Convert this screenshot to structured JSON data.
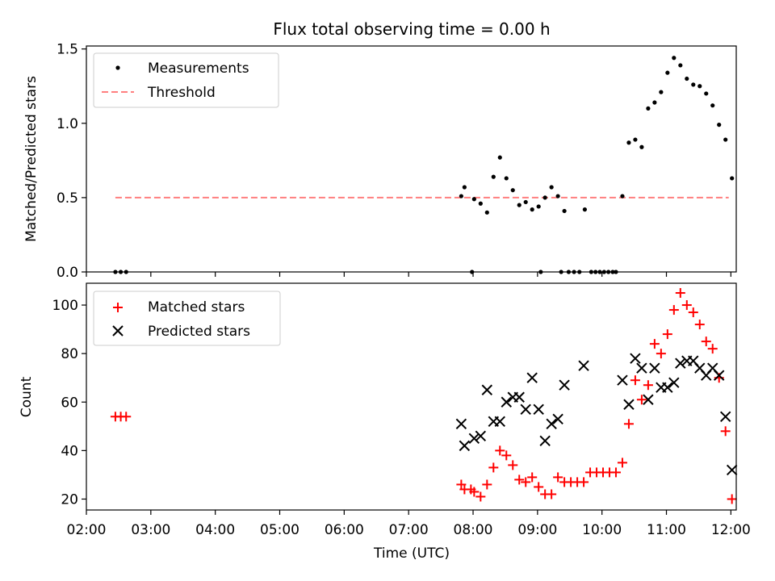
{
  "chart_data": [
    {
      "type": "scatter",
      "title": "Flux total observing time = 0.00 h",
      "xlabel": "",
      "ylabel": "Matched/Predicted stars",
      "xlim": [
        "02:00",
        "12:05"
      ],
      "ylim": [
        0,
        1.52
      ],
      "yticks": [
        "0.0",
        "0.5",
        "1.0",
        "1.5"
      ],
      "legend_position": "top-left",
      "series": [
        {
          "name": "Measurements",
          "marker": "dot",
          "color": "#000000",
          "points": [
            [
              "02:27",
              0.0
            ],
            [
              "02:32",
              0.0
            ],
            [
              "02:37",
              0.0
            ],
            [
              "07:49",
              0.51
            ],
            [
              "07:52",
              0.57
            ],
            [
              "07:59",
              0.0
            ],
            [
              "08:01",
              0.49
            ],
            [
              "08:07",
              0.46
            ],
            [
              "08:13",
              0.4
            ],
            [
              "08:19",
              0.64
            ],
            [
              "08:25",
              0.77
            ],
            [
              "08:31",
              0.63
            ],
            [
              "08:37",
              0.55
            ],
            [
              "08:43",
              0.45
            ],
            [
              "08:49",
              0.47
            ],
            [
              "08:55",
              0.42
            ],
            [
              "09:01",
              0.44
            ],
            [
              "09:07",
              0.5
            ],
            [
              "09:03",
              0.0
            ],
            [
              "09:13",
              0.57
            ],
            [
              "09:19",
              0.51
            ],
            [
              "09:25",
              0.41
            ],
            [
              "09:22",
              0.0
            ],
            [
              "09:29",
              0.0
            ],
            [
              "09:34",
              0.0
            ],
            [
              "09:39",
              0.0
            ],
            [
              "09:44",
              0.42
            ],
            [
              "09:50",
              0.0
            ],
            [
              "09:54",
              0.0
            ],
            [
              "09:58",
              0.0
            ],
            [
              "10:02",
              0.0
            ],
            [
              "10:06",
              0.0
            ],
            [
              "10:10",
              0.0
            ],
            [
              "10:13",
              0.0
            ],
            [
              "10:19",
              0.51
            ],
            [
              "10:25",
              0.87
            ],
            [
              "10:31",
              0.89
            ],
            [
              "10:37",
              0.84
            ],
            [
              "10:43",
              1.1
            ],
            [
              "10:49",
              1.14
            ],
            [
              "10:55",
              1.21
            ],
            [
              "11:01",
              1.34
            ],
            [
              "11:07",
              1.44
            ],
            [
              "11:13",
              1.39
            ],
            [
              "11:19",
              1.3
            ],
            [
              "11:25",
              1.26
            ],
            [
              "11:31",
              1.25
            ],
            [
              "11:37",
              1.2
            ],
            [
              "11:43",
              1.12
            ],
            [
              "11:49",
              0.99
            ],
            [
              "11:55",
              0.89
            ],
            [
              "12:01",
              0.63
            ]
          ]
        },
        {
          "name": "Threshold",
          "marker": "dashed-line",
          "color": "#ff7f7f",
          "points": [
            [
              "02:27",
              0.5
            ],
            [
              "11:58",
              0.5
            ]
          ]
        }
      ]
    },
    {
      "type": "scatter",
      "title": "",
      "xlabel": "Time (UTC)",
      "ylabel": "Count",
      "xlim": [
        "02:00",
        "12:05"
      ],
      "ylim": [
        15.5,
        109
      ],
      "yticks": [
        "20",
        "40",
        "60",
        "80",
        "100"
      ],
      "xticks": [
        "02:00",
        "03:00",
        "04:00",
        "05:00",
        "06:00",
        "07:00",
        "08:00",
        "09:00",
        "10:00",
        "11:00",
        "12:00"
      ],
      "legend_position": "top-left",
      "series": [
        {
          "name": "Matched stars",
          "marker": "plus",
          "color": "#ff0000",
          "points": [
            [
              "02:27",
              54
            ],
            [
              "02:32",
              54
            ],
            [
              "02:37",
              54
            ],
            [
              "07:49",
              26
            ],
            [
              "07:52",
              24
            ],
            [
              "07:58",
              24
            ],
            [
              "08:01",
              23
            ],
            [
              "08:07",
              21
            ],
            [
              "08:13",
              26
            ],
            [
              "08:19",
              33
            ],
            [
              "08:25",
              40
            ],
            [
              "08:31",
              38
            ],
            [
              "08:37",
              34
            ],
            [
              "08:43",
              28
            ],
            [
              "08:49",
              27
            ],
            [
              "08:55",
              29
            ],
            [
              "09:01",
              25
            ],
            [
              "09:07",
              22
            ],
            [
              "09:13",
              22
            ],
            [
              "09:19",
              29
            ],
            [
              "09:25",
              27
            ],
            [
              "09:31",
              27
            ],
            [
              "09:37",
              27
            ],
            [
              "09:43",
              27
            ],
            [
              "09:49",
              31
            ],
            [
              "09:55",
              31
            ],
            [
              "10:01",
              31
            ],
            [
              "10:07",
              31
            ],
            [
              "10:13",
              31
            ],
            [
              "10:19",
              35
            ],
            [
              "10:25",
              51
            ],
            [
              "10:31",
              69
            ],
            [
              "10:37",
              61
            ],
            [
              "10:43",
              67
            ],
            [
              "10:49",
              84
            ],
            [
              "10:55",
              80
            ],
            [
              "11:01",
              88
            ],
            [
              "11:07",
              98
            ],
            [
              "11:13",
              105
            ],
            [
              "11:19",
              100
            ],
            [
              "11:25",
              97
            ],
            [
              "11:31",
              92
            ],
            [
              "11:37",
              85
            ],
            [
              "11:43",
              82
            ],
            [
              "11:49",
              70
            ],
            [
              "11:55",
              48
            ],
            [
              "12:01",
              20
            ]
          ]
        },
        {
          "name": "Predicted stars",
          "marker": "x",
          "color": "#000000",
          "points": [
            [
              "07:49",
              51
            ],
            [
              "07:52",
              42
            ],
            [
              "08:01",
              45
            ],
            [
              "08:07",
              46
            ],
            [
              "08:13",
              65
            ],
            [
              "08:19",
              52
            ],
            [
              "08:25",
              52
            ],
            [
              "08:31",
              60
            ],
            [
              "08:37",
              62
            ],
            [
              "08:43",
              62
            ],
            [
              "08:49",
              57
            ],
            [
              "08:55",
              70
            ],
            [
              "09:01",
              57
            ],
            [
              "09:07",
              44
            ],
            [
              "09:13",
              51
            ],
            [
              "09:19",
              53
            ],
            [
              "09:25",
              67
            ],
            [
              "09:43",
              75
            ],
            [
              "10:19",
              69
            ],
            [
              "10:25",
              59
            ],
            [
              "10:31",
              78
            ],
            [
              "10:37",
              74
            ],
            [
              "10:43",
              61
            ],
            [
              "10:49",
              74
            ],
            [
              "10:55",
              66
            ],
            [
              "11:01",
              66
            ],
            [
              "11:07",
              68
            ],
            [
              "11:13",
              76
            ],
            [
              "11:19",
              77
            ],
            [
              "11:25",
              77
            ],
            [
              "11:31",
              74
            ],
            [
              "11:37",
              71
            ],
            [
              "11:43",
              74
            ],
            [
              "11:49",
              71
            ],
            [
              "11:55",
              54
            ],
            [
              "12:01",
              32
            ]
          ]
        }
      ]
    }
  ]
}
